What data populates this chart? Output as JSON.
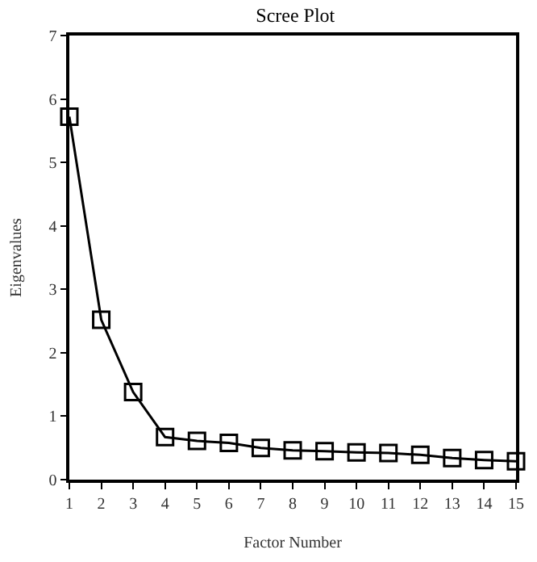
{
  "chart_data": {
    "type": "line",
    "title": "Scree Plot",
    "xlabel": "Factor Number",
    "ylabel": "Eigenvalues",
    "x": [
      1,
      2,
      3,
      4,
      5,
      6,
      7,
      8,
      9,
      10,
      11,
      12,
      13,
      14,
      15
    ],
    "series": [
      {
        "color": "#000000",
        "values": [
          5.72,
          2.52,
          1.38,
          0.67,
          0.61,
          0.58,
          0.5,
          0.46,
          0.45,
          0.43,
          0.42,
          0.39,
          0.34,
          0.31,
          0.29
        ]
      }
    ],
    "xlim": [
      1,
      15
    ],
    "xticks": [
      1,
      2,
      3,
      4,
      5,
      6,
      7,
      8,
      9,
      10,
      11,
      12,
      13,
      14,
      15
    ],
    "ylim": [
      0,
      7
    ],
    "yticks": [
      0,
      1,
      2,
      3,
      4,
      5,
      6,
      7
    ],
    "marker": "square",
    "line_style": "solid"
  }
}
